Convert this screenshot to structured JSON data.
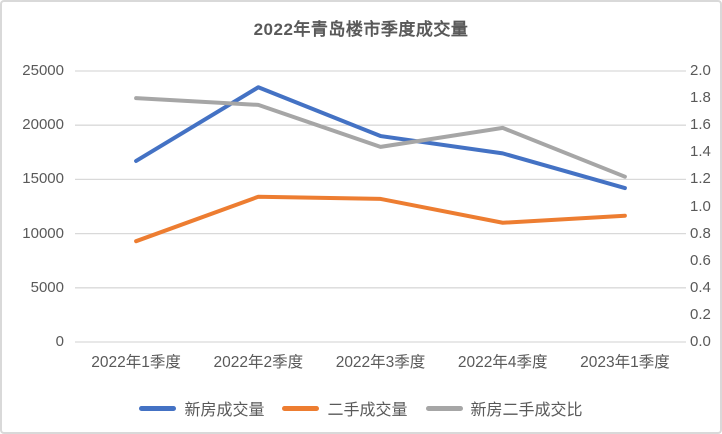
{
  "chart_data": {
    "type": "line",
    "title": "2022年青岛楼市季度成交量",
    "categories": [
      "2022年1季度",
      "2022年2季度",
      "2022年3季度",
      "2022年4季度",
      "2023年1季度"
    ],
    "series": [
      {
        "name": "新房成交量",
        "axis": "left",
        "color": "#4472C4",
        "values": [
          16700,
          23500,
          19000,
          17400,
          14200
        ]
      },
      {
        "name": "二手成交量",
        "axis": "left",
        "color": "#ED7D31",
        "values": [
          9300,
          13400,
          13200,
          11000,
          11650
        ]
      },
      {
        "name": "新房二手成交比",
        "axis": "right",
        "color": "#A6A6A6",
        "values": [
          1.8,
          1.75,
          1.44,
          1.58,
          1.22
        ]
      }
    ],
    "left_axis": {
      "min": 0,
      "max": 25000,
      "ticks": [
        0,
        5000,
        10000,
        15000,
        20000,
        25000
      ],
      "tick_labels": [
        "0",
        "5000",
        "10000",
        "15000",
        "20000",
        "25000"
      ]
    },
    "right_axis": {
      "min": 0,
      "max": 2.0,
      "ticks": [
        0.0,
        0.2,
        0.4,
        0.6,
        0.8,
        1.0,
        1.2,
        1.4,
        1.6,
        1.8,
        2.0
      ],
      "tick_labels": [
        "0.0",
        "0.2",
        "0.4",
        "0.6",
        "0.8",
        "1.0",
        "1.2",
        "1.4",
        "1.6",
        "1.8",
        "2.0"
      ]
    },
    "grid": true,
    "gridline_color": "#d9d9d9",
    "legend_position": "bottom",
    "text_color": "#595959"
  }
}
